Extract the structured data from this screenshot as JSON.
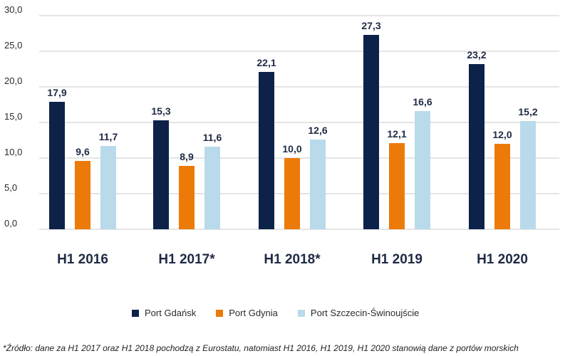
{
  "chart_data": {
    "type": "bar",
    "categories": [
      "H1 2016",
      "H1 2017*",
      "H1 2018*",
      "H1 2019",
      "H1 2020"
    ],
    "series": [
      {
        "name": "Port Gdańsk",
        "color": "#0d2248",
        "values": [
          17.9,
          15.3,
          22.1,
          27.3,
          23.2
        ]
      },
      {
        "name": "Port Gdynia",
        "color": "#ec7a08",
        "values": [
          9.6,
          8.9,
          10.0,
          12.1,
          12.0
        ]
      },
      {
        "name": "Port Szczecin-Świnoujście",
        "color": "#b9daea",
        "values": [
          11.7,
          11.6,
          12.6,
          16.6,
          15.2
        ]
      }
    ],
    "value_labels": [
      [
        "17,9",
        "15,3",
        "22,1",
        "27,3",
        "23,2"
      ],
      [
        "9,6",
        "8,9",
        "10,0",
        "12,1",
        "12,0"
      ],
      [
        "11,7",
        "11,6",
        "12,6",
        "16,6",
        "15,2"
      ]
    ],
    "yticks": [
      "0,0",
      "5,0",
      "10,0",
      "15,0",
      "20,0",
      "25,0",
      "30,0"
    ],
    "ylim": [
      0,
      30
    ],
    "grid": true,
    "legend_position": "bottom",
    "title": "",
    "xlabel": "",
    "ylabel": ""
  },
  "footnote": "*Źródło: dane za H1 2017 oraz H1 2018 pochodzą z  Eurostatu, natomiast H1 2016, H1 2019, H1 2020 stanowią dane z portów morskich"
}
